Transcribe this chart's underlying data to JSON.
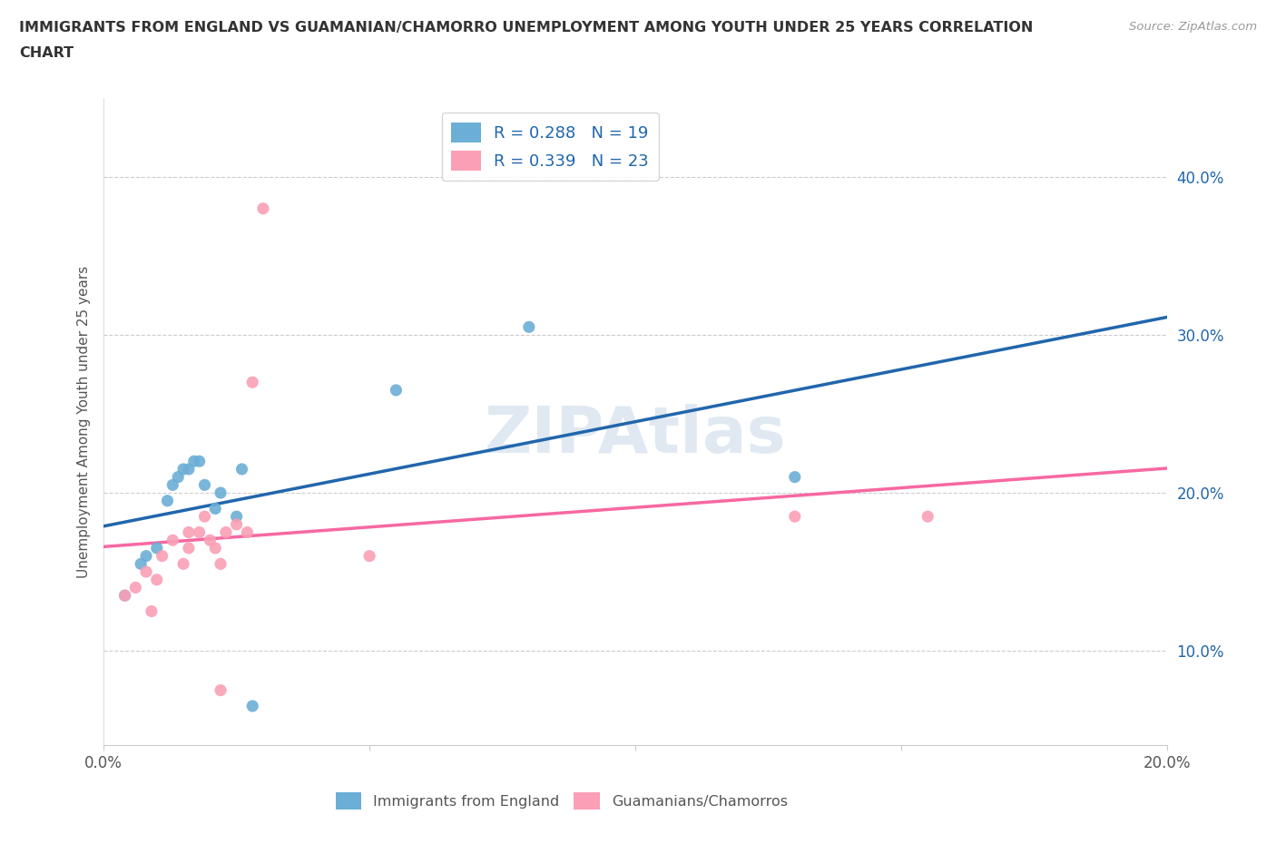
{
  "title_line1": "IMMIGRANTS FROM ENGLAND VS GUAMANIAN/CHAMORRO UNEMPLOYMENT AMONG YOUTH UNDER 25 YEARS CORRELATION",
  "title_line2": "CHART",
  "source": "Source: ZipAtlas.com",
  "xlim": [
    0.0,
    0.2
  ],
  "ylim": [
    0.04,
    0.45
  ],
  "ylabel": "Unemployment Among Youth under 25 years",
  "legend_labels": [
    "Immigrants from England",
    "Guamanians/Chamorros"
  ],
  "R_england": 0.288,
  "N_england": 19,
  "R_guam": 0.339,
  "N_guam": 23,
  "color_england": "#6baed6",
  "color_guam": "#fa9fb5",
  "trendline_england_color": "#2166ac",
  "trendline_guam_color": "#f768a1",
  "trendline_england_dashed_color": "#f4a9b8",
  "watermark": "ZIPAtlas",
  "ytick_color": "#2166ac",
  "xtick_color": "#555555",
  "england_x": [
    0.004,
    0.007,
    0.008,
    0.01,
    0.012,
    0.013,
    0.014,
    0.015,
    0.016,
    0.017,
    0.018,
    0.019,
    0.021,
    0.022,
    0.025,
    0.026,
    0.055,
    0.08,
    0.13
  ],
  "england_y": [
    0.135,
    0.155,
    0.16,
    0.165,
    0.195,
    0.205,
    0.21,
    0.215,
    0.215,
    0.22,
    0.22,
    0.205,
    0.19,
    0.2,
    0.185,
    0.215,
    0.265,
    0.305,
    0.21
  ],
  "guam_x": [
    0.004,
    0.006,
    0.008,
    0.009,
    0.01,
    0.011,
    0.013,
    0.015,
    0.016,
    0.016,
    0.018,
    0.019,
    0.02,
    0.021,
    0.022,
    0.023,
    0.025,
    0.027,
    0.028,
    0.03,
    0.05,
    0.13,
    0.155
  ],
  "guam_y": [
    0.135,
    0.14,
    0.15,
    0.125,
    0.145,
    0.16,
    0.17,
    0.155,
    0.165,
    0.175,
    0.175,
    0.185,
    0.17,
    0.165,
    0.155,
    0.175,
    0.18,
    0.175,
    0.27,
    0.38,
    0.16,
    0.185,
    0.185
  ],
  "england_low_x": [
    0.004
  ],
  "england_low_y": [
    0.135
  ],
  "england_outlier_x": [
    0.028
  ],
  "england_outlier_y": [
    0.065
  ],
  "guam_outlier_low_x": [
    0.022
  ],
  "guam_outlier_low_y": [
    0.075
  ]
}
